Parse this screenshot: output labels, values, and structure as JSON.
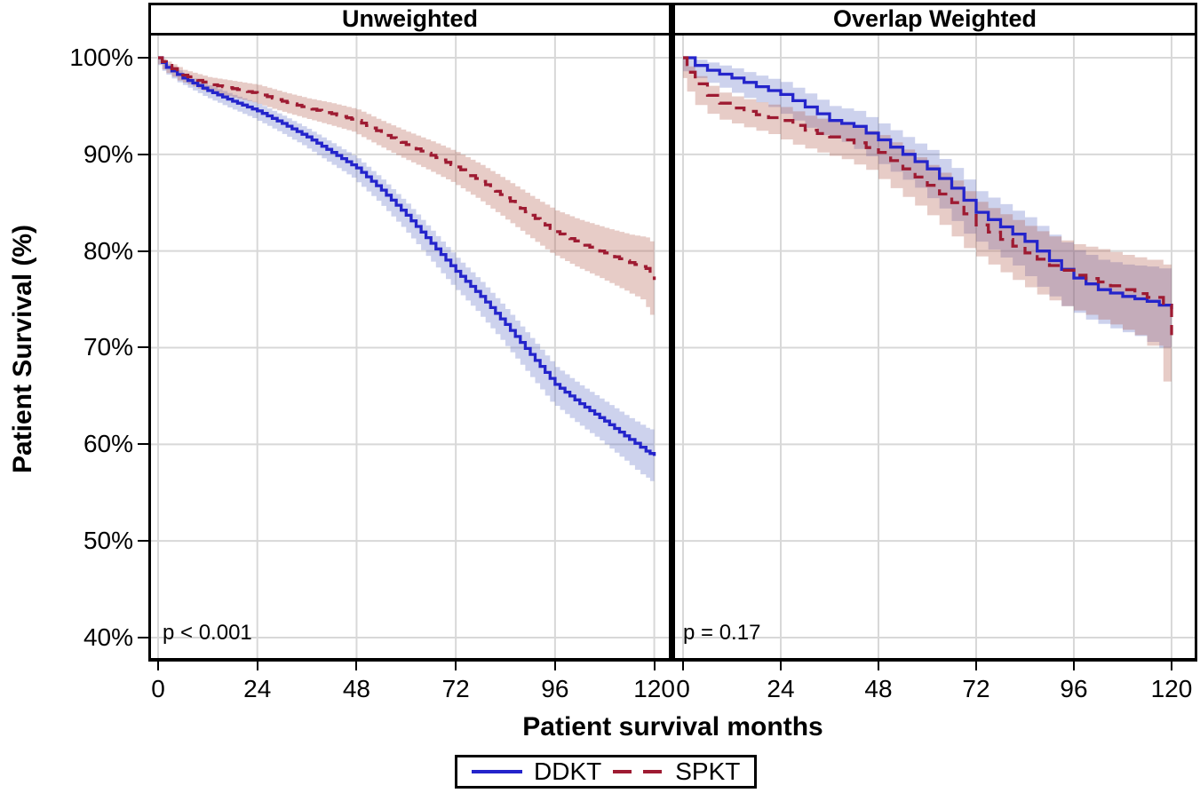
{
  "figure": {
    "x_axis_title": "Patient survival months",
    "y_axis_title": "Patient Survival (%)"
  },
  "colors": {
    "ddkt_line": "#2424cb",
    "spkt_line": "#9e1b32",
    "ddkt_band": "rgba(75,95,190,0.28)",
    "spkt_band": "rgba(175,85,70,0.30)",
    "grid": "#d8d8d8",
    "axis": "#000000"
  },
  "chart_data": {
    "type": "line",
    "subtype": "kaplan-meier-step-with-confidence-bands",
    "title": "",
    "xlabel": "Patient survival months",
    "ylabel": "Patient Survival (%)",
    "xlim": [
      0,
      124
    ],
    "ylim": [
      38,
      102
    ],
    "grid": true,
    "legend_position": "bottom",
    "x_ticks": [
      {
        "v": 0,
        "label": "0"
      },
      {
        "v": 24,
        "label": "24"
      },
      {
        "v": 48,
        "label": "48"
      },
      {
        "v": 72,
        "label": "72"
      },
      {
        "v": 96,
        "label": "96"
      },
      {
        "v": 120,
        "label": "120"
      }
    ],
    "y_ticks": [
      {
        "v": 100,
        "label": "100%"
      },
      {
        "v": 90,
        "label": "90%"
      },
      {
        "v": 80,
        "label": "80%"
      },
      {
        "v": 70,
        "label": "70%"
      },
      {
        "v": 60,
        "label": "60%"
      },
      {
        "v": 50,
        "label": "50%"
      },
      {
        "v": 40,
        "label": "40%"
      }
    ],
    "legend": [
      {
        "label": "DDKT",
        "style": "solid",
        "color": "#2424cb"
      },
      {
        "label": "SPKT",
        "style": "dashed",
        "color": "#9e1b32"
      }
    ],
    "panels": [
      {
        "title": "Unweighted",
        "p_value": "p < 0.001",
        "step_resolution_months": 1.2,
        "series": [
          {
            "name": "DDKT",
            "style": "solid",
            "color": "#2424cb",
            "band_color": "rgba(75,95,190,0.28)",
            "points_month_pct_ci": [
              [
                0,
                100,
                0.15
              ],
              [
                2,
                99.0,
                0.35
              ],
              [
                6,
                97.9,
                0.45
              ],
              [
                12,
                96.6,
                0.55
              ],
              [
                18,
                95.5,
                0.65
              ],
              [
                24,
                94.5,
                0.75
              ],
              [
                30,
                93.2,
                0.8
              ],
              [
                36,
                91.8,
                0.85
              ],
              [
                42,
                90.2,
                0.95
              ],
              [
                48,
                88.6,
                1.0
              ],
              [
                54,
                86.3,
                1.1
              ],
              [
                60,
                83.7,
                1.2
              ],
              [
                66,
                80.8,
                1.3
              ],
              [
                72,
                77.9,
                1.4
              ],
              [
                78,
                75.3,
                1.5
              ],
              [
                84,
                72.4,
                1.6
              ],
              [
                90,
                69.3,
                1.7
              ],
              [
                96,
                66.2,
                1.8
              ],
              [
                102,
                64.2,
                1.9
              ],
              [
                108,
                62.4,
                2.0
              ],
              [
                114,
                60.5,
                2.2
              ],
              [
                118,
                59.3,
                2.4
              ],
              [
                120,
                58.8,
                2.6
              ]
            ]
          },
          {
            "name": "SPKT",
            "style": "dashed",
            "color": "#9e1b32",
            "band_color": "rgba(175,85,70,0.30)",
            "points_month_pct_ci": [
              [
                0,
                100,
                0.15
              ],
              [
                2,
                99.2,
                0.4
              ],
              [
                6,
                98.2,
                0.55
              ],
              [
                12,
                97.3,
                0.7
              ],
              [
                18,
                96.8,
                0.8
              ],
              [
                24,
                96.3,
                0.9
              ],
              [
                30,
                95.5,
                0.95
              ],
              [
                36,
                94.8,
                1.0
              ],
              [
                42,
                94.2,
                1.1
              ],
              [
                48,
                93.5,
                1.15
              ],
              [
                54,
                92.2,
                1.25
              ],
              [
                60,
                91.0,
                1.35
              ],
              [
                66,
                89.9,
                1.45
              ],
              [
                72,
                88.7,
                1.55
              ],
              [
                78,
                87.2,
                1.7
              ],
              [
                84,
                85.5,
                1.85
              ],
              [
                90,
                83.7,
                2.0
              ],
              [
                96,
                82.0,
                2.2
              ],
              [
                102,
                80.8,
                2.4
              ],
              [
                108,
                79.8,
                2.6
              ],
              [
                114,
                78.8,
                2.9
              ],
              [
                118,
                78.2,
                3.2
              ],
              [
                120,
                77.0,
                3.6
              ]
            ]
          }
        ]
      },
      {
        "title": "Overlap Weighted",
        "p_value": "p = 0.17",
        "step_resolution_months": 3,
        "series": [
          {
            "name": "DDKT",
            "style": "solid",
            "color": "#2424cb",
            "band_color": "rgba(75,95,190,0.28)",
            "points_month_pct_ci": [
              [
                0,
                100,
                0.15
              ],
              [
                3,
                99.2,
                0.6
              ],
              [
                6,
                98.7,
                0.8
              ],
              [
                12,
                97.9,
                1.0
              ],
              [
                18,
                97.0,
                1.15
              ],
              [
                24,
                96.2,
                1.3
              ],
              [
                30,
                94.9,
                1.4
              ],
              [
                36,
                93.5,
                1.5
              ],
              [
                42,
                92.9,
                1.6
              ],
              [
                48,
                91.5,
                1.7
              ],
              [
                54,
                90.0,
                1.8
              ],
              [
                60,
                88.5,
                1.95
              ],
              [
                66,
                86.5,
                2.1
              ],
              [
                72,
                84.0,
                2.2
              ],
              [
                78,
                82.5,
                2.35
              ],
              [
                84,
                81.0,
                2.5
              ],
              [
                90,
                79.0,
                2.7
              ],
              [
                96,
                77.2,
                2.9
              ],
              [
                102,
                76.0,
                3.1
              ],
              [
                108,
                75.3,
                3.3
              ],
              [
                114,
                74.8,
                3.6
              ],
              [
                120,
                74.0,
                4.0
              ]
            ]
          },
          {
            "name": "SPKT",
            "style": "dashed",
            "color": "#9e1b32",
            "band_color": "rgba(175,85,70,0.30)",
            "points_month_pct_ci": [
              [
                0,
                100,
                0.15
              ],
              [
                1,
                98.5,
                0.6
              ],
              [
                3,
                97.3,
                0.8
              ],
              [
                6,
                96.1,
                1.0
              ],
              [
                9,
                95.3,
                1.1
              ],
              [
                12,
                94.8,
                1.2
              ],
              [
                18,
                94.1,
                1.3
              ],
              [
                24,
                93.5,
                1.4
              ],
              [
                30,
                92.5,
                1.5
              ],
              [
                36,
                91.8,
                1.6
              ],
              [
                42,
                91.2,
                1.7
              ],
              [
                48,
                90.2,
                1.8
              ],
              [
                54,
                88.5,
                2.0
              ],
              [
                60,
                86.8,
                2.1
              ],
              [
                66,
                85.0,
                2.3
              ],
              [
                72,
                82.7,
                2.4
              ],
              [
                78,
                81.2,
                2.6
              ],
              [
                84,
                79.8,
                2.8
              ],
              [
                90,
                78.5,
                3.0
              ],
              [
                96,
                77.5,
                3.2
              ],
              [
                102,
                76.8,
                3.4
              ],
              [
                108,
                76.0,
                3.6
              ],
              [
                114,
                75.2,
                3.9
              ],
              [
                118,
                74.4,
                4.2
              ],
              [
                120,
                71.3,
                4.8
              ]
            ]
          }
        ]
      }
    ]
  }
}
